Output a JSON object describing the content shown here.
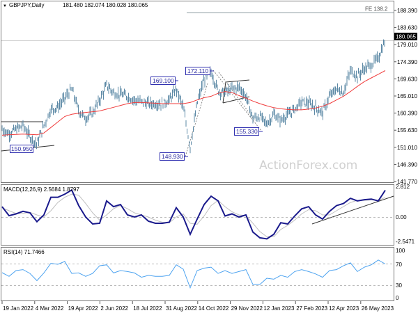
{
  "header": {
    "symbol": "GBPJPY,Daily",
    "ohlc": "181.480 182.074 180.028 180.065"
  },
  "watermark": "ActionForex.com",
  "colors": {
    "bars": "#5b88a5",
    "ma": "#f03c3c",
    "macd": "#1a1a8c",
    "signal": "#c0c0c0",
    "rsi": "#4da3f0",
    "annotation_border": "#3030b0",
    "price_label_bg": "#000000"
  },
  "chart_data": [
    {
      "type": "bar",
      "title": "GBPJPY,Daily",
      "xticks": [
        "19 Jan 2022",
        "4 Mar 2022",
        "19 Apr 2022",
        "2 Jun 2022",
        "18 Jul 2022",
        "31 Aug 2022",
        "14 Oct 2022",
        "29 Nov 2022",
        "12 Jan 2023",
        "27 Feb 2023",
        "12 Apr 2023",
        "26 May 2023"
      ],
      "yticks": [
        "188.390",
        "183.630",
        "179.010",
        "174.390",
        "169.630",
        "165.010",
        "160.390",
        "155.630",
        "151.010",
        "146.390",
        "141.770"
      ],
      "ylim": [
        141.77,
        188.39
      ],
      "current_price": "180.065",
      "close": [
        156,
        154.8,
        156,
        157,
        154,
        152,
        157,
        161.5,
        162,
        164.5,
        167,
        161,
        159,
        160.5,
        164,
        168,
        166,
        165.5,
        165,
        164,
        163.5,
        163,
        163,
        163,
        164,
        167,
        162,
        151,
        163,
        169.5,
        171.5,
        166.5,
        166,
        167,
        167.5,
        165,
        159,
        159.5,
        157.5,
        160,
        158.5,
        160,
        161.5,
        163.5,
        163,
        162,
        160.5,
        165,
        167,
        166,
        172,
        170.5,
        172.5,
        173.5,
        175.5,
        180.1
      ],
      "moving_average": [
        154.4,
        154.5,
        154.6,
        154.7,
        154.6,
        154.5,
        155,
        156.5,
        158,
        159.5,
        160.1,
        160.4,
        160.6,
        160.8,
        161,
        161.5,
        162,
        162.5,
        163,
        163.3,
        163.3,
        163.2,
        163.1,
        163,
        163,
        163,
        163,
        163.3,
        164,
        164.6,
        165,
        165.8,
        166.3,
        166,
        165.2,
        164.5,
        163.7,
        163,
        162.4,
        161.9,
        161.6,
        161.4,
        161.3,
        161.3,
        161.5,
        161.8,
        162.3,
        163,
        164,
        165,
        166.3,
        167.7,
        169,
        170,
        171,
        172
      ],
      "annotations": [
        "169.100",
        "172.110",
        "150.950",
        "148.930",
        "155.330",
        "FE 138.2"
      ]
    },
    {
      "type": "line",
      "title": "MACD(12,26,9) 2.5684 1.8797",
      "yticks": [
        "2.812",
        "0.00",
        "-2.5471"
      ],
      "ylim": [
        -2.5471,
        2.812
      ],
      "macd": [
        1.0,
        0.13,
        0.3,
        0.55,
        0.4,
        -0.45,
        0.2,
        1.9,
        1.9,
        2.2,
        2.6,
        1.1,
        0,
        -0.67,
        -0.6,
        1.55,
        1.0,
        1.2,
        0.2,
        0,
        0.2,
        -0.4,
        -0.6,
        -0.6,
        -0.5,
        0.9,
        0,
        -1.67,
        -0.2,
        1.2,
        2.0,
        1.55,
        0.1,
        0.3,
        0,
        0.2,
        -1.45,
        -2.0,
        -2.1,
        -1.67,
        -0.55,
        -0.67,
        0.1,
        0.78,
        1.0,
        0.2,
        -0.2,
        0.55,
        1.1,
        1.3,
        1.8,
        1.55,
        1.67,
        1.73,
        1.55,
        2.57
      ],
      "signal": [
        0.9,
        0.6,
        0.35,
        0.35,
        0.45,
        0.2,
        0.0,
        0.6,
        1.4,
        1.9,
        2.2,
        2.1,
        1.3,
        0.4,
        -0.3,
        0.2,
        0.8,
        1.1,
        0.8,
        0.4,
        0.2,
        0.0,
        -0.3,
        -0.5,
        -0.55,
        0.0,
        0.3,
        -0.6,
        -0.7,
        0.1,
        1.1,
        1.6,
        1.0,
        0.5,
        0.2,
        0.15,
        -0.6,
        -1.4,
        -1.9,
        -1.9,
        -1.2,
        -0.8,
        -0.3,
        0.3,
        0.7,
        0.6,
        0.2,
        0.2,
        0.6,
        1.0,
        1.4,
        1.6,
        1.6,
        1.65,
        1.6,
        1.88
      ]
    },
    {
      "type": "line",
      "title": "RSI(14) 71.7466",
      "yticks": [
        "100",
        "70",
        "30",
        "0"
      ],
      "ylim": [
        0,
        100
      ],
      "levels": [
        70,
        30
      ],
      "rsi": [
        53.6,
        46,
        58,
        60,
        52,
        37,
        53,
        73,
        71,
        77,
        52,
        53,
        46,
        52,
        68,
        70,
        53,
        58,
        56,
        53,
        44,
        48,
        46,
        46,
        48,
        70,
        61,
        22,
        58,
        63,
        65,
        52,
        58,
        52,
        56,
        60,
        29,
        29,
        42,
        40,
        48,
        44,
        56,
        60,
        56,
        51,
        44,
        58,
        60,
        68,
        74,
        56,
        65,
        70,
        80,
        71.7
      ]
    }
  ]
}
